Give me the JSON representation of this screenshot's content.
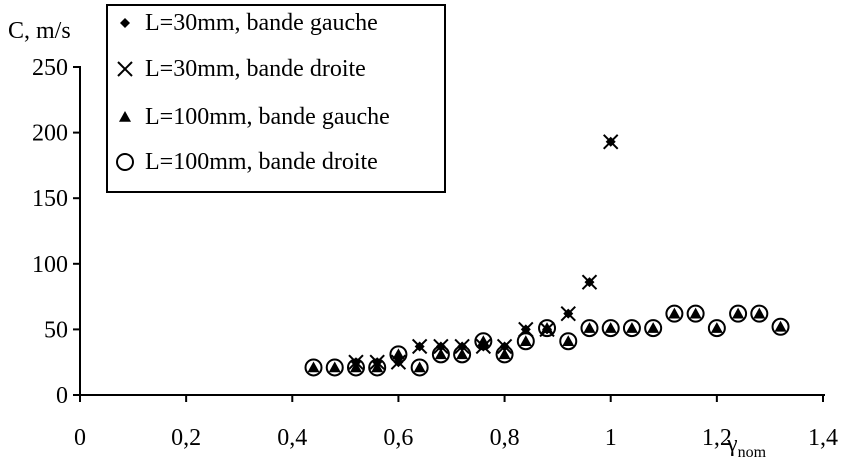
{
  "chart_data": {
    "type": "scatter",
    "ylabel": "C, m/s",
    "xlabel": "γ",
    "xlabel_subscript": "nom",
    "xlim": [
      0,
      1.4
    ],
    "ylim": [
      0,
      250
    ],
    "x_ticks": [
      0,
      0.2,
      0.4,
      0.6,
      0.8,
      1.0,
      1.2,
      1.4
    ],
    "x_tick_labels": [
      "0",
      "0,2",
      "0,4",
      "0,6",
      "0,8",
      "1",
      "1,2",
      "1,4"
    ],
    "y_ticks": [
      0,
      50,
      100,
      150,
      200,
      250
    ],
    "y_tick_labels": [
      "0",
      "50",
      "100",
      "150",
      "200",
      "250"
    ],
    "grid": false,
    "legend_position": "top-left",
    "series": [
      {
        "name": "L=30mm, bande gauche",
        "marker": "diamond",
        "points": [
          [
            0.52,
            25
          ],
          [
            0.56,
            25
          ],
          [
            0.6,
            25
          ],
          [
            0.64,
            37
          ],
          [
            0.68,
            37
          ],
          [
            0.72,
            37
          ],
          [
            0.76,
            37
          ],
          [
            0.8,
            37
          ],
          [
            0.84,
            50
          ],
          [
            0.88,
            50
          ],
          [
            0.92,
            62
          ],
          [
            0.96,
            86
          ],
          [
            1.0,
            193
          ]
        ]
      },
      {
        "name": "L=30mm, bande droite",
        "marker": "x",
        "points": [
          [
            0.52,
            25
          ],
          [
            0.56,
            25
          ],
          [
            0.6,
            25
          ],
          [
            0.64,
            37
          ],
          [
            0.68,
            37
          ],
          [
            0.72,
            37
          ],
          [
            0.76,
            37
          ],
          [
            0.8,
            37
          ],
          [
            0.84,
            50
          ],
          [
            0.88,
            50
          ],
          [
            0.92,
            62
          ],
          [
            0.96,
            86
          ],
          [
            1.0,
            193
          ]
        ]
      },
      {
        "name": "L=100mm, bande gauche",
        "marker": "triangle",
        "points": [
          [
            0.44,
            21
          ],
          [
            0.48,
            21
          ],
          [
            0.52,
            21
          ],
          [
            0.56,
            21
          ],
          [
            0.6,
            31
          ],
          [
            0.64,
            21
          ],
          [
            0.68,
            31
          ],
          [
            0.72,
            31
          ],
          [
            0.76,
            41
          ],
          [
            0.8,
            31
          ],
          [
            0.84,
            41
          ],
          [
            0.88,
            51
          ],
          [
            0.92,
            41
          ],
          [
            0.96,
            51
          ],
          [
            1.0,
            51
          ],
          [
            1.04,
            51
          ],
          [
            1.08,
            51
          ],
          [
            1.12,
            62
          ],
          [
            1.16,
            62
          ],
          [
            1.2,
            51
          ],
          [
            1.24,
            62
          ],
          [
            1.28,
            62
          ],
          [
            1.32,
            52
          ]
        ]
      },
      {
        "name": "L=100mm, bande droite",
        "marker": "circle",
        "points": [
          [
            0.44,
            21
          ],
          [
            0.48,
            21
          ],
          [
            0.52,
            21
          ],
          [
            0.56,
            21
          ],
          [
            0.6,
            31
          ],
          [
            0.64,
            21
          ],
          [
            0.68,
            31
          ],
          [
            0.72,
            31
          ],
          [
            0.76,
            41
          ],
          [
            0.8,
            31
          ],
          [
            0.84,
            41
          ],
          [
            0.88,
            51
          ],
          [
            0.92,
            41
          ],
          [
            0.96,
            51
          ],
          [
            1.0,
            51
          ],
          [
            1.04,
            51
          ],
          [
            1.08,
            51
          ],
          [
            1.12,
            62
          ],
          [
            1.16,
            62
          ],
          [
            1.2,
            51
          ],
          [
            1.24,
            62
          ],
          [
            1.28,
            62
          ],
          [
            1.32,
            52
          ]
        ]
      }
    ]
  }
}
